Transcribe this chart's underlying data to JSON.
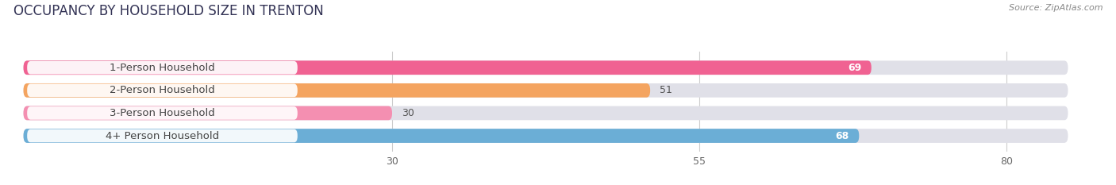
{
  "title": "OCCUPANCY BY HOUSEHOLD SIZE IN TRENTON",
  "source": "Source: ZipAtlas.com",
  "categories": [
    "1-Person Household",
    "2-Person Household",
    "3-Person Household",
    "4+ Person Household"
  ],
  "values": [
    69,
    51,
    30,
    68
  ],
  "bar_colors": [
    "#F06292",
    "#F4A460",
    "#F48FB1",
    "#6BAED6"
  ],
  "bar_bg_color": "#E0E0E8",
  "xticks": [
    30,
    55,
    80
  ],
  "xstart": 0,
  "xmax": 85,
  "title_fontsize": 12,
  "label_fontsize": 9.5,
  "value_fontsize": 9,
  "source_fontsize": 8,
  "bar_height": 0.62
}
